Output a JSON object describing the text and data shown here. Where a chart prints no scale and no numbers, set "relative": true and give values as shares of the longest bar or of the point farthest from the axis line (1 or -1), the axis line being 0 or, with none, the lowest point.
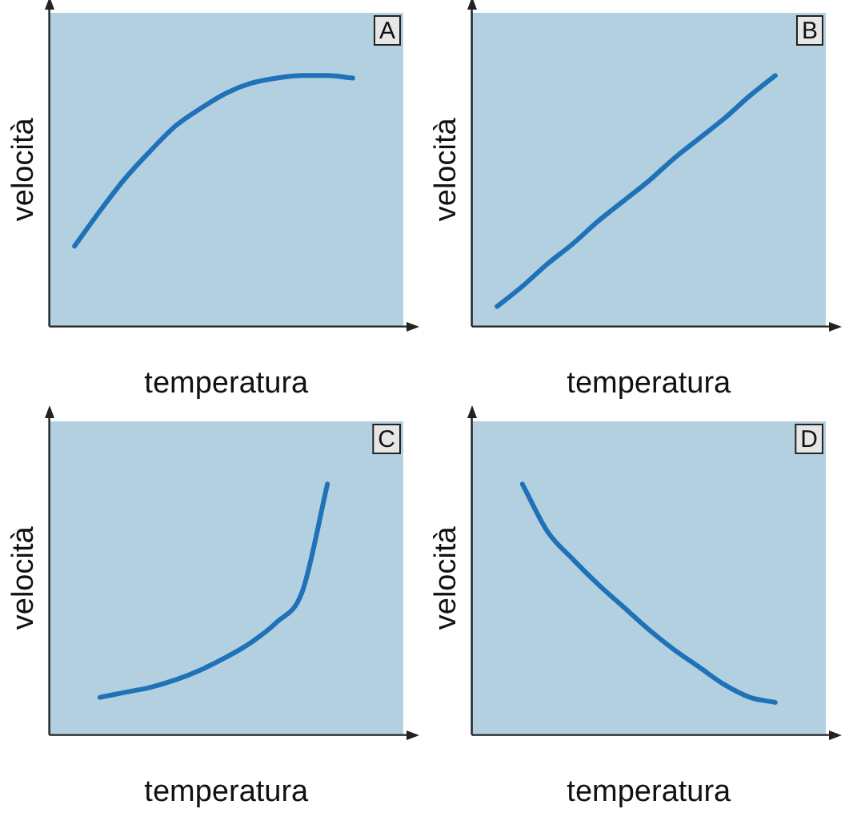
{
  "chart_data": [
    {
      "type": "line",
      "relative": true,
      "xlabel": "temperatura",
      "ylabel": "velocità",
      "annotations": [
        "A"
      ],
      "grid": false,
      "legend": false,
      "marker": "none",
      "line_style": "solid",
      "categories": [
        null,
        null,
        null,
        null,
        null,
        null,
        null,
        null,
        null,
        null,
        null,
        null,
        null,
        null,
        null
      ],
      "series": [
        {
          "color": "#1f72b8",
          "values": [
            null,
            0.32,
            0.46,
            0.59,
            0.7,
            0.8,
            0.87,
            0.93,
            0.97,
            0.99,
            1,
            1,
            0.99,
            null,
            null
          ]
        }
      ]
    },
    {
      "type": "line",
      "relative": true,
      "xlabel": "temperatura",
      "ylabel": "velocità",
      "annotations": [
        "B"
      ],
      "grid": false,
      "legend": false,
      "marker": "none",
      "line_style": "solid",
      "categories": [
        null,
        null,
        null,
        null,
        null,
        null,
        null,
        null,
        null,
        null,
        null,
        null,
        null,
        null,
        null
      ],
      "series": [
        {
          "color": "#1f72b8",
          "values": [
            null,
            0.08,
            0.16,
            0.25,
            0.33,
            0.42,
            0.5,
            0.58,
            0.67,
            0.75,
            0.83,
            0.92,
            1,
            null,
            null
          ]
        }
      ]
    },
    {
      "type": "line",
      "relative": true,
      "xlabel": "temperatura",
      "ylabel": "velocità",
      "annotations": [
        "C"
      ],
      "grid": false,
      "legend": false,
      "marker": "none",
      "line_style": "solid",
      "categories": [
        null,
        null,
        null,
        null,
        null,
        null,
        null,
        null,
        null,
        null,
        null,
        null,
        null,
        null,
        null
      ],
      "series": [
        {
          "color": "#1f72b8",
          "values": [
            null,
            null,
            0.15,
            0.17,
            0.19,
            0.22,
            0.26,
            0.31,
            0.37,
            0.45,
            0.57,
            1,
            null,
            null,
            null
          ]
        }
      ]
    },
    {
      "type": "line",
      "relative": true,
      "xlabel": "temperatura",
      "ylabel": "velocità",
      "annotations": [
        "D"
      ],
      "grid": false,
      "legend": false,
      "marker": "none",
      "line_style": "solid",
      "categories": [
        null,
        null,
        null,
        null,
        null,
        null,
        null,
        null,
        null,
        null,
        null,
        null,
        null,
        null,
        null
      ],
      "series": [
        {
          "color": "#1f72b8",
          "values": [
            null,
            null,
            1,
            0.81,
            0.7,
            0.6,
            0.51,
            0.42,
            0.34,
            0.27,
            0.2,
            0.15,
            0.13,
            null,
            null
          ]
        }
      ]
    }
  ]
}
